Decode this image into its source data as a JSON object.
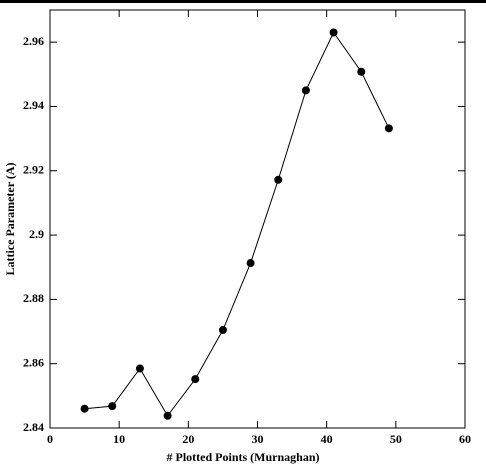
{
  "chart_data": {
    "type": "line",
    "x_label": "# Plotted Points (Murnaghan)",
    "y_label": "Lattice Parameter (A)",
    "x": [
      5,
      9,
      13,
      17,
      21,
      25,
      29,
      33,
      37,
      41,
      45,
      49
    ],
    "series": [
      {
        "color": "#000000",
        "values": [
          2.846,
          2.8468,
          2.8585,
          2.8438,
          2.8552,
          2.8705,
          2.8913,
          2.9172,
          2.945,
          2.963,
          2.9508,
          2.9332
        ]
      }
    ],
    "xlim": [
      0,
      60
    ],
    "xticks": [
      0,
      10,
      20,
      30,
      40,
      50,
      60
    ],
    "ylim": [
      2.84,
      2.97
    ],
    "yticks": [
      2.84,
      2.86,
      2.88,
      2.9,
      2.92,
      2.94,
      2.96
    ]
  }
}
